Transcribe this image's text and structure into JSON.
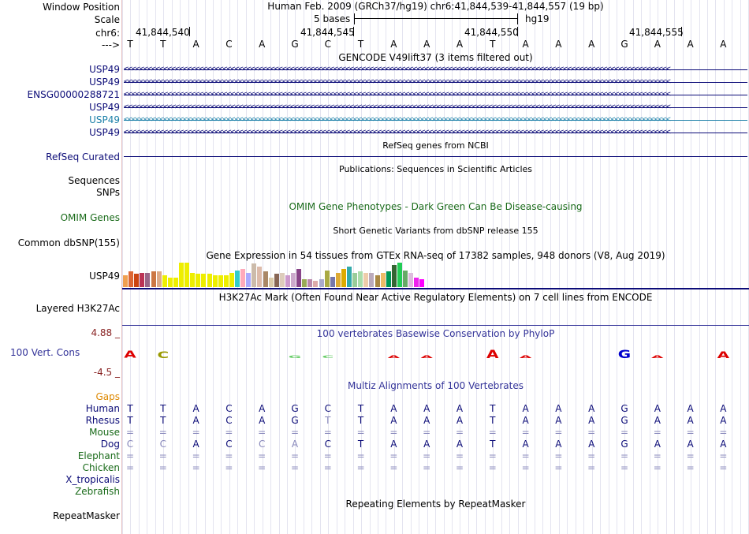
{
  "header": {
    "window_position_label": "Window Position",
    "window_position_value": "Human Feb. 2009 (GRCh37/hg19)   chr6:41,844,539-41,844,557 (19 bp)",
    "scale_label": "Scale",
    "scale_value": "5 bases",
    "scale_assembly": "hg19",
    "chrom_label": "chr6:",
    "strand_label": "--->",
    "positions": [
      "41,844,540",
      "41,844,545",
      "41,844,550",
      "41,844,555"
    ]
  },
  "sequence": [
    "T",
    "T",
    "A",
    "C",
    "A",
    "G",
    "C",
    "T",
    "A",
    "A",
    "A",
    "T",
    "A",
    "A",
    "A",
    "G",
    "A",
    "A",
    "A"
  ],
  "gencode": {
    "title": "GENCODE V49lift37 (3 items filtered out)",
    "rows": [
      {
        "name": "USP49",
        "color": "#0c0c78"
      },
      {
        "name": "USP49",
        "color": "#0c0c78"
      },
      {
        "name": "ENSG00000288721",
        "color": "#0c0c78"
      },
      {
        "name": "USP49",
        "color": "#0c0c78"
      },
      {
        "name": "USP49",
        "color": "#1a7fa8"
      },
      {
        "name": "USP49",
        "color": "#0c0c78"
      }
    ],
    "arrows": "<<<<<<<<<<<<<<<<<<<<<<<<<<<<<<<<<<<<<<<<<<<<<<<<<<<<<<<<<<<<<<<<<<<<<<<<<<<<<<<<<<<<<<<<<<<<<<<<<<<<<<<<<<<<<<<<<<<<<<<<<<<<<<<<<<<<<<<<<<"
  },
  "refseq": {
    "title": "RefSeq genes from NCBI",
    "label": "RefSeq Curated"
  },
  "publications": {
    "title": "Publications: Sequences in Scientific Articles",
    "label": "Sequences"
  },
  "snps": {
    "label": "SNPs"
  },
  "omim": {
    "title": "OMIM Gene Phenotypes - Dark Green Can Be Disease-causing",
    "label": "OMIM Genes"
  },
  "dbsnp": {
    "title": "Short Genetic Variants from dbSNP release 155",
    "label": "Common dbSNP(155)"
  },
  "gtex": {
    "title": "Gene Expression in 54 tissues from GTEx RNA-seq of 17382 samples, 948 donors (V8, Aug 2019)",
    "label": "USP49",
    "values": [
      0.45,
      0.6,
      0.5,
      0.55,
      0.55,
      0.6,
      0.6,
      0.45,
      0.35,
      0.35,
      0.95,
      0.95,
      0.55,
      0.5,
      0.5,
      0.5,
      0.45,
      0.45,
      0.45,
      0.55,
      0.65,
      0.7,
      0.55,
      0.9,
      0.8,
      0.6,
      0.35,
      0.5,
      0.55,
      0.45,
      0.55,
      0.7,
      0.3,
      0.3,
      0.25,
      0.3,
      0.65,
      0.4,
      0.55,
      0.7,
      0.8,
      0.55,
      0.6,
      0.55,
      0.55,
      0.45,
      0.55,
      0.6,
      0.85,
      0.95,
      0.65,
      0.55,
      0.35,
      0.3
    ],
    "colors": [
      "#f0a050",
      "#dd6633",
      "#cc4411",
      "#bb3355",
      "#996688",
      "#cc7744",
      "#ddaa88",
      "#eeee00",
      "#eeee00",
      "#eeee00",
      "#eeee00",
      "#eeee00",
      "#eeee00",
      "#eeee00",
      "#eeee00",
      "#eeee00",
      "#eeee00",
      "#eeee00",
      "#eeee00",
      "#eeee00",
      "#33cccc",
      "#ffaabb",
      "#aaaaff",
      "#ccbbaa",
      "#ddbbaa",
      "#aa8866",
      "#ddccaa",
      "#886655",
      "#ddccbb",
      "#cc99cc",
      "#ccaacc",
      "#884488",
      "#99aa55",
      "#bb88aa",
      "#ddaaaa",
      "#aaaacc",
      "#aaaa44",
      "#7777aa",
      "#ddaa33",
      "#ddaa00",
      "#33aaaa",
      "#99cc99",
      "#aaddaa",
      "#eeccaa",
      "#bbaabb",
      "#aa8844",
      "#eebb66",
      "#009955",
      "#336633",
      "#22cc55",
      "#66aa66",
      "#ddbbdd",
      "#ee22ee",
      "#ff00ff"
    ]
  },
  "h3k27ac": {
    "title": "H3K27Ac Mark (Often Found Near Active Regulatory Elements) on 7 cell lines from ENCODE",
    "label": "Layered H3K27Ac"
  },
  "phylop": {
    "title": "100 vertebrates Basewise Conservation by PhyloP",
    "label": "100 Vert. Cons",
    "max": "4.88 _",
    "min": "-4.5 _",
    "logo": [
      {
        "base": "A",
        "color": "#dd0000",
        "score": 0.55
      },
      {
        "base": "C",
        "color": "#999900",
        "score": 0.5
      },
      {
        "base": "",
        "color": "#000000",
        "score": 0
      },
      {
        "base": "",
        "color": "#000000",
        "score": 0
      },
      {
        "base": "",
        "color": "#000000",
        "score": 0
      },
      {
        "base": "G",
        "color": "#66cc66",
        "score": 0.1
      },
      {
        "base": "C",
        "color": "#66cc66",
        "score": 0.1
      },
      {
        "base": "",
        "color": "#000000",
        "score": 0
      },
      {
        "base": "A",
        "color": "#dd0000",
        "score": 0.12
      },
      {
        "base": "A",
        "color": "#dd0000",
        "score": 0.12
      },
      {
        "base": "",
        "color": "#000000",
        "score": 0
      },
      {
        "base": "A",
        "color": "#dd0000",
        "score": 0.6
      },
      {
        "base": "A",
        "color": "#dd0000",
        "score": 0.12
      },
      {
        "base": "",
        "color": "#000000",
        "score": 0
      },
      {
        "base": "",
        "color": "#000000",
        "score": 0
      },
      {
        "base": "G",
        "color": "#0000cc",
        "score": 0.6
      },
      {
        "base": "A",
        "color": "#dd0000",
        "score": 0.12
      },
      {
        "base": "",
        "color": "#000000",
        "score": 0
      },
      {
        "base": "A",
        "color": "#dd0000",
        "score": 0.5
      }
    ]
  },
  "multiz": {
    "title": "Multiz Alignments of 100 Vertebrates",
    "gaps_label": "Gaps",
    "species": [
      {
        "name": "Human",
        "color": "#0c0c78",
        "seq": [
          "T",
          "T",
          "A",
          "C",
          "A",
          "G",
          "C",
          "T",
          "A",
          "A",
          "A",
          "T",
          "A",
          "A",
          "A",
          "G",
          "A",
          "A",
          "A"
        ]
      },
      {
        "name": "Rhesus",
        "color": "#0c0c78",
        "seq": [
          "T",
          "T",
          "A",
          "C",
          "A",
          "G",
          "T",
          "T",
          "A",
          "A",
          "A",
          "T",
          "A",
          "A",
          "A",
          "G",
          "A",
          "A",
          "A"
        ]
      },
      {
        "name": "Mouse",
        "color": "#1a6b1a",
        "seq": [
          "=",
          "=",
          "=",
          "=",
          "=",
          "=",
          "=",
          "=",
          "=",
          "=",
          "=",
          "=",
          "=",
          "=",
          "=",
          "=",
          "=",
          "=",
          "="
        ]
      },
      {
        "name": "Dog",
        "color": "#0c0c78",
        "seq": [
          "C",
          "C",
          "A",
          "C",
          "C",
          "A",
          "C",
          "T",
          "A",
          "A",
          "A",
          "T",
          "A",
          "A",
          "A",
          "G",
          "A",
          "A",
          "A"
        ]
      },
      {
        "name": "Elephant",
        "color": "#1a6b1a",
        "seq": [
          "=",
          "=",
          "=",
          "=",
          "=",
          "=",
          "=",
          "=",
          "=",
          "=",
          "=",
          "=",
          "=",
          "=",
          "=",
          "=",
          "=",
          "=",
          "="
        ]
      },
      {
        "name": "Chicken",
        "color": "#1a6b1a",
        "seq": [
          "=",
          "=",
          "=",
          "=",
          "=",
          "=",
          "=",
          "=",
          "=",
          "=",
          "=",
          "=",
          "=",
          "=",
          "=",
          "=",
          "=",
          "=",
          "="
        ]
      },
      {
        "name": "X_tropicalis",
        "color": "#0c0c78",
        "seq": []
      },
      {
        "name": "Zebrafish",
        "color": "#1a6b1a",
        "seq": []
      }
    ]
  },
  "repeatmasker": {
    "title": "Repeating Elements by RepeatMasker",
    "label": "RepeatMasker"
  },
  "colors": {
    "navy": "#0c0c78",
    "green": "#1a6b1a",
    "orange": "#dd8800",
    "brown": "#882222",
    "blue": "#333399"
  }
}
